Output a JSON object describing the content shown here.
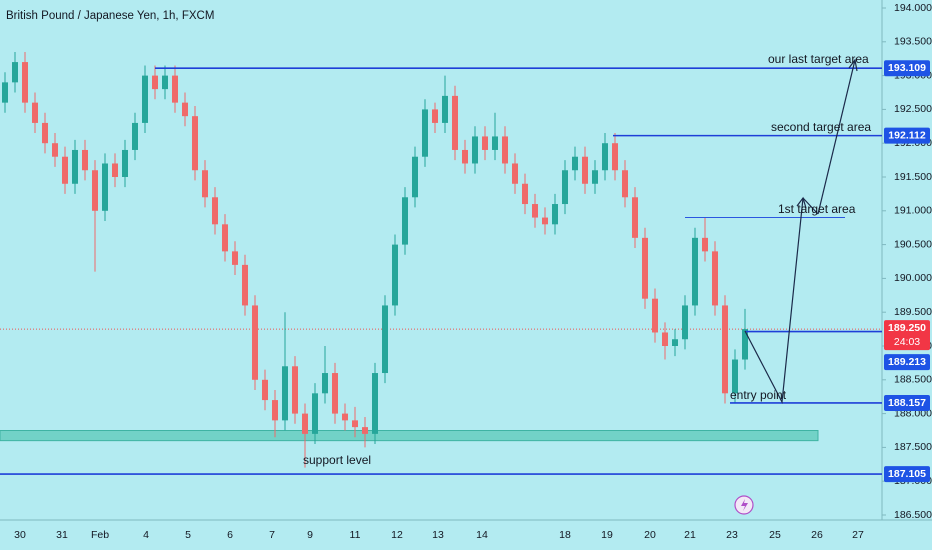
{
  "chart_data": {
    "type": "candlestick",
    "title": "British Pound / Japanese Yen, 1h, FXCM",
    "ylim": [
      186.5,
      194.0
    ],
    "yticks": [
      {
        "value": 186.5,
        "label": "186.500"
      },
      {
        "value": 187.0,
        "label": "187.000"
      },
      {
        "value": 187.5,
        "label": "187.500"
      },
      {
        "value": 188.0,
        "label": "188.000"
      },
      {
        "value": 188.5,
        "label": "188.500"
      },
      {
        "value": 189.0,
        "label": "189.000"
      },
      {
        "value": 189.5,
        "label": "189.500"
      },
      {
        "value": 190.0,
        "label": "190.000"
      },
      {
        "value": 190.5,
        "label": "190.500"
      },
      {
        "value": 191.0,
        "label": "191.000"
      },
      {
        "value": 191.5,
        "label": "191.500"
      },
      {
        "value": 192.0,
        "label": "192.000"
      },
      {
        "value": 192.5,
        "label": "192.500"
      },
      {
        "value": 193.0,
        "label": "193.000"
      },
      {
        "value": 193.5,
        "label": "193.500"
      },
      {
        "value": 194.0,
        "label": "194.000"
      }
    ],
    "xticks": [
      "30",
      "31",
      "Feb",
      "4",
      "5",
      "6",
      "7",
      "9",
      "11",
      "12",
      "13",
      "14",
      "18",
      "19",
      "20",
      "21",
      "23",
      "25",
      "26",
      "27"
    ],
    "up_color": "#26a69a",
    "down_color": "#ef6a6a",
    "candles": [
      [
        192.6,
        193.05,
        192.45,
        192.9
      ],
      [
        192.9,
        193.35,
        192.75,
        193.2
      ],
      [
        193.2,
        193.35,
        192.45,
        192.6
      ],
      [
        192.6,
        192.75,
        192.15,
        192.3
      ],
      [
        192.3,
        192.45,
        191.85,
        192.0
      ],
      [
        192.0,
        192.15,
        191.65,
        191.8
      ],
      [
        191.8,
        191.95,
        191.25,
        191.4
      ],
      [
        191.4,
        192.05,
        191.25,
        191.9
      ],
      [
        191.9,
        192.05,
        191.45,
        191.6
      ],
      [
        191.6,
        191.75,
        190.1,
        191.0
      ],
      [
        191.0,
        191.85,
        190.85,
        191.7
      ],
      [
        191.7,
        191.85,
        191.35,
        191.5
      ],
      [
        191.5,
        192.05,
        191.35,
        191.9
      ],
      [
        191.9,
        192.45,
        191.75,
        192.3
      ],
      [
        192.3,
        193.15,
        192.15,
        193.0
      ],
      [
        193.0,
        193.15,
        192.65,
        192.8
      ],
      [
        192.8,
        193.15,
        192.65,
        193.0
      ],
      [
        193.0,
        193.15,
        192.45,
        192.6
      ],
      [
        192.6,
        192.75,
        192.25,
        192.4
      ],
      [
        192.4,
        192.55,
        191.45,
        191.6
      ],
      [
        191.6,
        191.75,
        191.05,
        191.2
      ],
      [
        191.2,
        191.35,
        190.65,
        190.8
      ],
      [
        190.8,
        190.95,
        190.25,
        190.4
      ],
      [
        190.4,
        190.55,
        190.05,
        190.2
      ],
      [
        190.2,
        190.35,
        189.45,
        189.6
      ],
      [
        189.6,
        189.75,
        188.35,
        188.5
      ],
      [
        188.5,
        188.65,
        188.05,
        188.2
      ],
      [
        188.2,
        188.35,
        187.65,
        187.9
      ],
      [
        187.9,
        189.5,
        187.75,
        188.7
      ],
      [
        188.7,
        188.85,
        187.85,
        188.0
      ],
      [
        188.0,
        188.15,
        187.2,
        187.7
      ],
      [
        187.7,
        188.45,
        187.55,
        188.3
      ],
      [
        188.3,
        189.0,
        188.15,
        188.6
      ],
      [
        188.6,
        188.75,
        187.85,
        188.0
      ],
      [
        188.0,
        188.15,
        187.75,
        187.9
      ],
      [
        187.9,
        188.1,
        187.65,
        187.8
      ],
      [
        187.8,
        187.95,
        187.5,
        187.7
      ],
      [
        187.7,
        188.75,
        187.55,
        188.6
      ],
      [
        188.6,
        189.75,
        188.45,
        189.6
      ],
      [
        189.6,
        190.65,
        189.45,
        190.5
      ],
      [
        190.5,
        191.35,
        190.35,
        191.2
      ],
      [
        191.2,
        191.95,
        191.05,
        191.8
      ],
      [
        191.8,
        192.65,
        191.65,
        192.5
      ],
      [
        192.5,
        192.6,
        192.15,
        192.3
      ],
      [
        192.3,
        193.0,
        192.15,
        192.7
      ],
      [
        192.7,
        192.85,
        191.75,
        191.9
      ],
      [
        191.9,
        192.05,
        191.55,
        191.7
      ],
      [
        191.7,
        192.25,
        191.55,
        192.1
      ],
      [
        192.1,
        192.25,
        191.75,
        191.9
      ],
      [
        191.9,
        192.45,
        191.75,
        192.1
      ],
      [
        192.1,
        192.25,
        191.55,
        191.7
      ],
      [
        191.7,
        191.85,
        191.25,
        191.4
      ],
      [
        191.4,
        191.55,
        190.95,
        191.1
      ],
      [
        191.1,
        191.25,
        190.75,
        190.9
      ],
      [
        190.9,
        191.05,
        190.65,
        190.8
      ],
      [
        190.8,
        191.25,
        190.65,
        191.1
      ],
      [
        191.1,
        191.75,
        190.95,
        191.6
      ],
      [
        191.6,
        191.95,
        191.45,
        191.8
      ],
      [
        191.8,
        191.95,
        191.25,
        191.4
      ],
      [
        191.4,
        191.75,
        191.25,
        191.6
      ],
      [
        191.6,
        192.15,
        191.45,
        192.0
      ],
      [
        192.0,
        192.15,
        191.45,
        191.6
      ],
      [
        191.6,
        191.75,
        191.05,
        191.2
      ],
      [
        191.2,
        191.35,
        190.45,
        190.6
      ],
      [
        190.6,
        190.75,
        189.55,
        189.7
      ],
      [
        189.7,
        189.85,
        189.05,
        189.2
      ],
      [
        189.2,
        189.35,
        188.8,
        189.0
      ],
      [
        189.0,
        189.25,
        188.85,
        189.1
      ],
      [
        189.1,
        189.75,
        188.95,
        189.6
      ],
      [
        189.6,
        190.75,
        189.45,
        190.6
      ],
      [
        190.6,
        190.9,
        190.25,
        190.4
      ],
      [
        190.4,
        190.55,
        189.45,
        189.6
      ],
      [
        189.6,
        189.75,
        188.15,
        188.3
      ],
      [
        188.3,
        188.95,
        188.15,
        188.8
      ],
      [
        188.8,
        189.55,
        188.65,
        189.25
      ]
    ],
    "levels": [
      {
        "value": 193.109,
        "label": "193.109"
      },
      {
        "value": 192.112,
        "label": "192.112"
      },
      {
        "value": 189.213,
        "label": "189.213"
      },
      {
        "value": 188.157,
        "label": "188.157"
      },
      {
        "value": 187.105,
        "label": "187.105"
      }
    ],
    "first_target_line": 190.9,
    "support_zone": [
      187.6,
      187.75
    ],
    "last_price": {
      "value": 189.25,
      "label": "189.250",
      "countdown": "24:03"
    },
    "annotations": [
      "our last target area",
      "second target area",
      "1st target area",
      "entry point",
      "support level"
    ]
  }
}
